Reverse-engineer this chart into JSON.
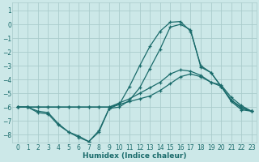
{
  "xlabel": "Humidex (Indice chaleur)",
  "bg_color": "#cce8e8",
  "grid_color": "#aacccc",
  "line_color": "#1a6b6b",
  "xlim": [
    -0.5,
    23.5
  ],
  "ylim": [
    -8.6,
    1.6
  ],
  "xticks": [
    0,
    1,
    2,
    3,
    4,
    5,
    6,
    7,
    8,
    9,
    10,
    11,
    12,
    13,
    14,
    15,
    16,
    17,
    18,
    19,
    20,
    21,
    22,
    23
  ],
  "yticks": [
    1,
    0,
    -1,
    -2,
    -3,
    -4,
    -5,
    -6,
    -7,
    -8
  ],
  "series": [
    {
      "x": [
        0,
        1,
        2,
        3,
        4,
        5,
        6,
        7,
        8,
        9,
        10,
        11,
        12,
        13,
        14,
        15,
        16,
        17,
        18,
        19,
        20,
        21,
        22,
        23
      ],
      "y": [
        -6.0,
        -6.0,
        -6.3,
        -6.4,
        -7.2,
        -7.8,
        -8.1,
        -8.5,
        -7.7,
        -6.1,
        -5.8,
        -4.5,
        -3.0,
        -1.6,
        -0.5,
        0.15,
        0.2,
        -0.5,
        -3.0,
        -3.5,
        -4.5,
        -5.5,
        -6.1,
        -6.3
      ]
    },
    {
      "x": [
        0,
        1,
        2,
        3,
        4,
        5,
        6,
        7,
        8,
        9,
        10,
        11,
        12,
        13,
        14,
        15,
        16,
        17,
        18,
        19,
        20,
        21,
        22,
        23
      ],
      "y": [
        -6.0,
        -6.0,
        -6.4,
        -6.5,
        -7.3,
        -7.8,
        -8.2,
        -8.5,
        -7.8,
        -6.1,
        -6.0,
        -5.5,
        -4.6,
        -3.2,
        -1.8,
        -0.2,
        0.0,
        -0.4,
        -3.1,
        -3.5,
        -4.5,
        -5.6,
        -6.2,
        -6.3
      ]
    },
    {
      "x": [
        0,
        1,
        2,
        3,
        4,
        5,
        6,
        7,
        8,
        9,
        10,
        11,
        12,
        13,
        14,
        15,
        16,
        17,
        18,
        19,
        20,
        21,
        22,
        23
      ],
      "y": [
        -6.0,
        -6.0,
        -6.0,
        -6.0,
        -6.0,
        -6.0,
        -6.0,
        -6.0,
        -6.0,
        -6.0,
        -5.8,
        -5.6,
        -5.4,
        -5.2,
        -4.8,
        -4.3,
        -3.8,
        -3.6,
        -3.8,
        -4.2,
        -4.5,
        -5.5,
        -6.0,
        -6.3
      ]
    },
    {
      "x": [
        0,
        1,
        2,
        3,
        4,
        5,
        6,
        7,
        8,
        9,
        10,
        11,
        12,
        13,
        14,
        15,
        16,
        17,
        18,
        19,
        20,
        21,
        22,
        23
      ],
      "y": [
        -6.0,
        -6.0,
        -6.0,
        -6.0,
        -6.0,
        -6.0,
        -6.0,
        -6.0,
        -6.0,
        -6.0,
        -5.7,
        -5.4,
        -5.0,
        -4.6,
        -4.2,
        -3.6,
        -3.3,
        -3.4,
        -3.7,
        -4.2,
        -4.4,
        -5.3,
        -5.9,
        -6.3
      ]
    }
  ]
}
